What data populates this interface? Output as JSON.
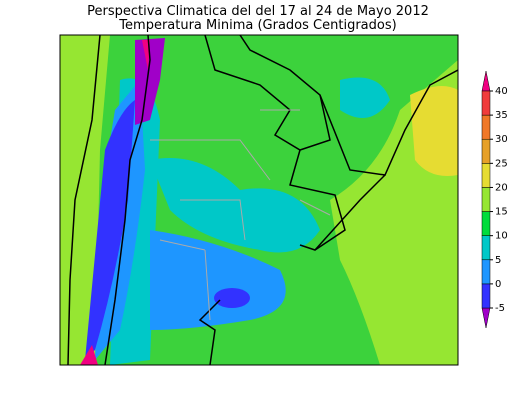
{
  "title": "Perspectiva Climatica del del 17 al 24 de Mayo 2012",
  "subtitle": "Temperatura Minima (Grados Centigrados)",
  "colorbar": {
    "ylim": [
      -5,
      40
    ],
    "ticks": [
      -5,
      0,
      5,
      10,
      15,
      20,
      25,
      30,
      35,
      40
    ],
    "colors": [
      "#a000c8",
      "#3232ff",
      "#1e96ff",
      "#00c8c8",
      "#00dc3c",
      "#96e632",
      "#e6dc32",
      "#e6a028",
      "#f07828",
      "#f03c3c",
      "#f00082"
    ]
  }
}
